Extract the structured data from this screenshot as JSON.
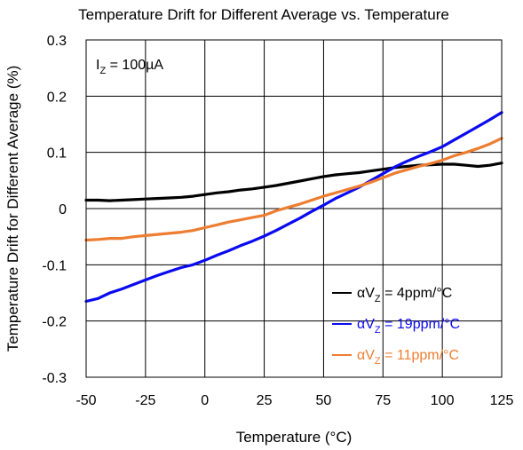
{
  "chart_data": {
    "type": "line",
    "title": "Temperature Drift for Different Average vs. Temperature",
    "xlabel": "Temperature (°C)",
    "ylabel": "Temperature Drift for Different Average (%)",
    "xlim": [
      -50,
      125
    ],
    "ylim": [
      -0.3,
      0.3
    ],
    "x_ticks": [
      "-50",
      "-25",
      "0",
      "25",
      "50",
      "75",
      "100",
      "125"
    ],
    "y_ticks": [
      "0.3",
      "0.2",
      "0.1",
      "0",
      "-0.1",
      "-0.2",
      "-0.3"
    ],
    "grid": true,
    "legend_position": "bottom-right",
    "annotation": {
      "prefix": "I",
      "sub": "Z",
      "suffix": " = 100µA"
    },
    "series": [
      {
        "name": "αVZ = 4ppm/°C",
        "legend": {
          "prefix": "αV",
          "sub": "Z",
          "suffix": " = 4ppm/°C"
        },
        "color": "#000000",
        "x": [
          -50,
          -45,
          -40,
          -35,
          -30,
          -25,
          -20,
          -15,
          -10,
          -5,
          0,
          5,
          10,
          15,
          20,
          25,
          30,
          35,
          40,
          45,
          50,
          55,
          60,
          65,
          70,
          75,
          80,
          85,
          90,
          95,
          100,
          105,
          110,
          115,
          120,
          125
        ],
        "y": [
          0.015,
          0.015,
          0.014,
          0.015,
          0.016,
          0.017,
          0.018,
          0.019,
          0.02,
          0.022,
          0.025,
          0.028,
          0.03,
          0.033,
          0.035,
          0.038,
          0.041,
          0.045,
          0.049,
          0.053,
          0.057,
          0.06,
          0.062,
          0.064,
          0.067,
          0.07,
          0.073,
          0.075,
          0.077,
          0.078,
          0.079,
          0.079,
          0.077,
          0.075,
          0.077,
          0.081
        ]
      },
      {
        "name": "αVZ = 19ppm/°C",
        "legend": {
          "prefix": "αV",
          "sub": "Z",
          "suffix": " = 19ppm/°C"
        },
        "color": "#0a0af0",
        "x": [
          -50,
          -45,
          -40,
          -35,
          -30,
          -25,
          -20,
          -15,
          -10,
          -5,
          0,
          5,
          10,
          15,
          20,
          25,
          30,
          35,
          40,
          45,
          50,
          55,
          60,
          65,
          70,
          75,
          80,
          85,
          90,
          95,
          100,
          105,
          110,
          115,
          120,
          125
        ],
        "y": [
          -0.165,
          -0.16,
          -0.15,
          -0.143,
          -0.135,
          -0.127,
          -0.119,
          -0.112,
          -0.105,
          -0.1,
          -0.092,
          -0.083,
          -0.075,
          -0.066,
          -0.058,
          -0.049,
          -0.039,
          -0.028,
          -0.017,
          -0.005,
          0.006,
          0.018,
          0.028,
          0.038,
          0.05,
          0.062,
          0.074,
          0.084,
          0.093,
          0.101,
          0.11,
          0.122,
          0.134,
          0.146,
          0.158,
          0.171
        ]
      },
      {
        "name": "αVZ = 11ppm/°C",
        "legend": {
          "prefix": "αV",
          "sub": "Z",
          "suffix": " = 11ppm/°C"
        },
        "color": "#ed7d31",
        "x": [
          -50,
          -45,
          -40,
          -35,
          -30,
          -25,
          -20,
          -15,
          -10,
          -5,
          0,
          5,
          10,
          15,
          20,
          25,
          30,
          35,
          40,
          45,
          50,
          55,
          60,
          65,
          70,
          75,
          80,
          85,
          90,
          95,
          100,
          105,
          110,
          115,
          120,
          125
        ],
        "y": [
          -0.056,
          -0.055,
          -0.053,
          -0.053,
          -0.05,
          -0.048,
          -0.046,
          -0.044,
          -0.042,
          -0.039,
          -0.034,
          -0.029,
          -0.024,
          -0.02,
          -0.016,
          -0.012,
          -0.004,
          0.002,
          0.008,
          0.015,
          0.022,
          0.028,
          0.034,
          0.04,
          0.047,
          0.055,
          0.063,
          0.069,
          0.075,
          0.08,
          0.086,
          0.094,
          0.1,
          0.107,
          0.115,
          0.125
        ]
      }
    ]
  }
}
